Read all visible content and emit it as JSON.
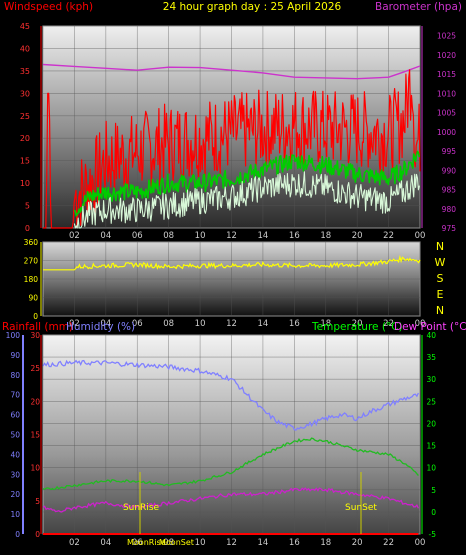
{
  "header": {
    "left": "Windspeed (kph)",
    "center": "24 hour graph day : 25 April 2026",
    "right": "Barometer (hpa)"
  },
  "panel3_header": {
    "rainfall": "Rainfall (mm)",
    "humidity": "Humidity (%)",
    "temperature": "Temperature (°C)",
    "dewpoint": "Dew Point (°C)"
  },
  "colors": {
    "windspeed": "#ff0000",
    "gust_avg": "#00cc00",
    "wind_low": "#d8f8d8",
    "barometer": "#cc33cc",
    "direction": "#ffff00",
    "humidity": "#8080ff",
    "temperature": "#22bb22",
    "dewpoint": "#cc22cc",
    "rainfall": "#ff0000"
  },
  "compass": [
    "N",
    "W",
    "S",
    "E",
    "N"
  ],
  "sun_labels": {
    "sunrise": "SunRise",
    "sunset": "SunSet",
    "moonrise": "MoonRise",
    "moonset": "MoonSet"
  },
  "chart_data": [
    {
      "type": "line",
      "x_ticks": [
        "02",
        "04",
        "06",
        "08",
        "10",
        "12",
        "14",
        "16",
        "18",
        "20",
        "22",
        "00"
      ],
      "left_axis": {
        "label": "Windspeed (kph)",
        "ticks": [
          0,
          5,
          10,
          15,
          20,
          25,
          30,
          35,
          40,
          45
        ],
        "range": [
          0,
          45
        ]
      },
      "right_axis": {
        "label": "Barometer (hpa)",
        "ticks": [
          975,
          980,
          985,
          990,
          995,
          1000,
          1005,
          1010,
          1015,
          1020,
          1025
        ],
        "range": [
          975,
          1027.5
        ]
      },
      "series": [
        {
          "axis": "right",
          "x": [
            0,
            2,
            4,
            6,
            8,
            10,
            12,
            14,
            16,
            18,
            20,
            22,
            23,
            24
          ],
          "y": [
            1017.5,
            1017.0,
            1016.5,
            1016.0,
            1016.8,
            1016.7,
            1016.0,
            1015.3,
            1014.2,
            1014.0,
            1013.8,
            1014.2,
            1015.6,
            1017.1
          ]
        },
        {
          "axis": "left",
          "x": [
            0,
            0.2,
            0.3,
            0.4,
            0.5,
            1.5,
            1.9,
            2.0,
            3,
            4,
            6,
            8,
            10,
            12,
            14,
            16,
            18,
            20,
            22,
            23,
            23.5,
            23.7,
            24
          ],
          "y": [
            0,
            0,
            30,
            30,
            0,
            0,
            0,
            7,
            10,
            15,
            17,
            19,
            20,
            21,
            22,
            23,
            22,
            22,
            21,
            24,
            35,
            18,
            20
          ]
        },
        {
          "axis": "left",
          "x": [
            2,
            3,
            4,
            6,
            8,
            10,
            12,
            14,
            16,
            18,
            20,
            22,
            23,
            24
          ],
          "y": [
            4,
            7,
            8,
            8,
            10,
            10,
            11,
            13,
            15,
            14,
            12,
            11,
            13,
            17
          ]
        },
        {
          "axis": "left",
          "x": [
            2,
            3,
            4,
            6,
            8,
            10,
            12,
            14,
            16,
            18,
            20,
            22,
            23,
            24
          ],
          "y": [
            1,
            3,
            4,
            4,
            5,
            6,
            7,
            9,
            10,
            9,
            7,
            6,
            8,
            11
          ]
        }
      ]
    },
    {
      "type": "scatter",
      "x_ticks": [
        "02",
        "04",
        "06",
        "08",
        "10",
        "12",
        "14",
        "16",
        "18",
        "20",
        "22",
        "00"
      ],
      "y_axis": {
        "ticks": [
          0,
          90,
          180,
          270,
          360
        ],
        "range": [
          0,
          360
        ]
      },
      "series": [
        {
          "x": [
            0,
            2,
            2.2,
            4,
            6,
            8,
            10,
            12,
            14,
            16,
            18,
            20,
            22,
            23,
            24
          ],
          "y": [
            225,
            225,
            240,
            245,
            250,
            240,
            245,
            245,
            250,
            245,
            245,
            250,
            265,
            280,
            270
          ]
        }
      ]
    },
    {
      "type": "line",
      "x_ticks": [
        "02",
        "04",
        "06",
        "08",
        "10",
        "12",
        "14",
        "16",
        "18",
        "20",
        "22",
        "00"
      ],
      "left_axis_1": {
        "label": "Rainfall (mm)",
        "ticks": [
          0,
          5,
          10,
          15,
          20,
          25,
          30
        ],
        "range": [
          0,
          30
        ]
      },
      "left_axis_2": {
        "label": "Humidity (%)",
        "ticks": [
          0,
          10,
          20,
          30,
          40,
          50,
          60,
          70,
          80,
          90,
          100
        ],
        "range": [
          0,
          100
        ]
      },
      "right_axis": {
        "label": "Temperature (°C)",
        "ticks": [
          -5,
          0,
          5,
          10,
          15,
          20,
          25,
          30,
          35,
          40
        ],
        "range": [
          -5,
          40
        ]
      },
      "series": [
        {
          "axis": "left2",
          "x": [
            0,
            2,
            4,
            6,
            8,
            10,
            12,
            13,
            14,
            15,
            16,
            17,
            18,
            19,
            20,
            21,
            22,
            23,
            24
          ],
          "y": [
            85,
            86,
            86,
            85,
            84,
            82,
            78,
            70,
            62,
            56,
            53,
            55,
            58,
            60,
            58,
            62,
            65,
            68,
            70
          ]
        },
        {
          "axis": "right",
          "x": [
            0,
            2,
            4,
            6,
            8,
            10,
            12,
            14,
            16,
            17,
            18,
            20,
            22,
            23,
            24
          ],
          "y": [
            5,
            6,
            7,
            7,
            6,
            7,
            9,
            13,
            16,
            16.5,
            16,
            14,
            13,
            11,
            8
          ]
        },
        {
          "axis": "right",
          "x": [
            0,
            1,
            2,
            4,
            6,
            8,
            10,
            12,
            14,
            16,
            18,
            20,
            22,
            24
          ],
          "y": [
            1,
            0,
            1,
            2,
            1,
            2,
            3,
            4,
            4,
            5,
            5,
            4,
            3,
            1
          ]
        },
        {
          "axis": "left1",
          "x": [
            0,
            24
          ],
          "y": [
            0,
            0
          ]
        }
      ]
    }
  ]
}
